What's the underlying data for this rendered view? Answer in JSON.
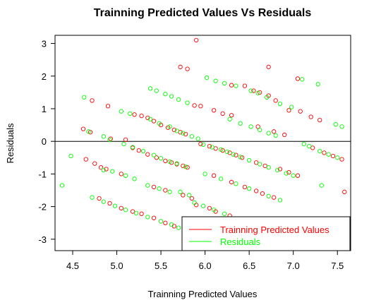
{
  "chart_data": {
    "type": "scatter",
    "title": "Trainning Predicted Values Vs Residuals",
    "xlabel": "Trainning Predicted Values",
    "ylabel": "Residuals",
    "xlim": [
      4.3,
      7.65
    ],
    "ylim": [
      -3.35,
      3.25
    ],
    "xticks": [
      "4.5",
      "5.0",
      "5.5",
      "6.0",
      "6.5",
      "7.0",
      "7.5"
    ],
    "yticks": [
      "-3",
      "-2",
      "-1",
      "0",
      "1",
      "2",
      "3"
    ],
    "hline": 0,
    "legend_position": "bottom-right",
    "series": [
      {
        "name": "Trainning Predicted Values",
        "color": "#ff0000",
        "points": [
          [
            4.62,
            0.38
          ],
          [
            4.7,
            0.28
          ],
          [
            4.72,
            1.25
          ],
          [
            4.9,
            1.08
          ],
          [
            4.93,
            0.08
          ],
          [
            5.1,
            0.05
          ],
          [
            5.2,
            0.82
          ],
          [
            5.28,
            0.78
          ],
          [
            5.35,
            0.72
          ],
          [
            5.42,
            0.62
          ],
          [
            5.5,
            0.5
          ],
          [
            5.58,
            0.42
          ],
          [
            5.65,
            0.35
          ],
          [
            5.72,
            0.28
          ],
          [
            5.78,
            0.22
          ],
          [
            5.88,
            1.1
          ],
          [
            5.95,
            1.08
          ],
          [
            6.1,
            0.95
          ],
          [
            6.2,
            0.85
          ],
          [
            6.3,
            0.8
          ],
          [
            6.45,
            1.7
          ],
          [
            6.55,
            1.55
          ],
          [
            6.62,
            1.5
          ],
          [
            6.72,
            1.4
          ],
          [
            6.8,
            1.25
          ],
          [
            6.95,
            0.95
          ],
          [
            7.08,
            0.92
          ],
          [
            7.2,
            0.75
          ],
          [
            7.3,
            0.65
          ],
          [
            5.72,
            2.28
          ],
          [
            5.8,
            2.22
          ],
          [
            5.9,
            3.1
          ],
          [
            6.3,
            1.72
          ],
          [
            6.72,
            2.28
          ],
          [
            7.05,
            1.92
          ],
          [
            6.6,
            0.45
          ],
          [
            6.78,
            0.3
          ],
          [
            6.9,
            0.2
          ],
          [
            4.65,
            -0.55
          ],
          [
            4.75,
            -0.68
          ],
          [
            4.82,
            -0.8
          ],
          [
            4.88,
            -0.85
          ],
          [
            5.05,
            -1.0
          ],
          [
            5.18,
            -0.2
          ],
          [
            5.25,
            -0.28
          ],
          [
            5.35,
            -0.4
          ],
          [
            5.45,
            -0.5
          ],
          [
            5.55,
            -0.6
          ],
          [
            5.62,
            -0.65
          ],
          [
            5.68,
            -0.7
          ],
          [
            5.75,
            -0.75
          ],
          [
            5.8,
            -0.8
          ],
          [
            5.95,
            -0.08
          ],
          [
            6.05,
            -0.15
          ],
          [
            6.12,
            -0.22
          ],
          [
            6.2,
            -0.28
          ],
          [
            6.28,
            -0.35
          ],
          [
            6.35,
            -0.42
          ],
          [
            6.42,
            -0.5
          ],
          [
            6.58,
            -0.65
          ],
          [
            6.68,
            -0.75
          ],
          [
            6.85,
            -0.85
          ],
          [
            6.95,
            -0.95
          ],
          [
            7.05,
            -1.05
          ],
          [
            7.22,
            -0.2
          ],
          [
            7.35,
            -0.35
          ],
          [
            7.45,
            -0.45
          ],
          [
            7.55,
            -0.55
          ],
          [
            7.58,
            -1.55
          ],
          [
            6.1,
            -1.05
          ],
          [
            6.3,
            -1.25
          ],
          [
            6.45,
            -1.4
          ],
          [
            6.58,
            -1.52
          ],
          [
            6.65,
            -1.6
          ],
          [
            6.78,
            -1.72
          ],
          [
            4.8,
            -1.75
          ],
          [
            4.92,
            -1.9
          ],
          [
            5.05,
            -2.05
          ],
          [
            5.18,
            -2.15
          ],
          [
            5.28,
            -2.22
          ],
          [
            5.42,
            -2.35
          ],
          [
            5.55,
            -2.5
          ],
          [
            5.65,
            -2.6
          ],
          [
            5.9,
            -1.95
          ],
          [
            6.05,
            -2.05
          ],
          [
            6.12,
            -2.15
          ],
          [
            6.28,
            -2.28
          ],
          [
            5.75,
            -1.65
          ],
          [
            5.85,
            -1.75
          ],
          [
            5.55,
            -1.5
          ],
          [
            5.42,
            -1.4
          ]
        ]
      },
      {
        "name": "Residuals",
        "color": "#00ff00",
        "points": [
          [
            4.38,
            -1.35
          ],
          [
            4.48,
            -0.45
          ],
          [
            4.63,
            1.35
          ],
          [
            4.68,
            0.3
          ],
          [
            4.85,
            0.15
          ],
          [
            5.05,
            0.92
          ],
          [
            5.15,
            0.85
          ],
          [
            5.38,
            1.62
          ],
          [
            5.45,
            1.55
          ],
          [
            5.55,
            1.45
          ],
          [
            5.62,
            1.38
          ],
          [
            5.7,
            1.28
          ],
          [
            5.8,
            1.18
          ],
          [
            5.38,
            0.68
          ],
          [
            5.48,
            0.55
          ],
          [
            5.6,
            0.45
          ],
          [
            5.68,
            0.32
          ],
          [
            5.75,
            0.25
          ],
          [
            5.85,
            0.15
          ],
          [
            5.92,
            0.08
          ],
          [
            6.02,
            1.95
          ],
          [
            6.12,
            1.85
          ],
          [
            6.22,
            1.78
          ],
          [
            6.35,
            1.7
          ],
          [
            6.52,
            1.55
          ],
          [
            6.6,
            1.48
          ],
          [
            6.7,
            1.35
          ],
          [
            6.85,
            1.15
          ],
          [
            6.98,
            1.05
          ],
          [
            7.1,
            1.9
          ],
          [
            7.28,
            1.75
          ],
          [
            6.28,
            0.68
          ],
          [
            6.4,
            0.55
          ],
          [
            6.52,
            0.45
          ],
          [
            6.62,
            0.35
          ],
          [
            6.72,
            0.25
          ],
          [
            6.8,
            0.18
          ],
          [
            7.12,
            -0.08
          ],
          [
            7.48,
            0.52
          ],
          [
            7.55,
            0.45
          ],
          [
            4.92,
            0.05
          ],
          [
            5.08,
            -0.08
          ],
          [
            5.18,
            -0.18
          ],
          [
            5.3,
            -0.3
          ],
          [
            5.42,
            -0.42
          ],
          [
            5.5,
            -0.52
          ],
          [
            5.6,
            -0.62
          ],
          [
            5.68,
            -0.68
          ],
          [
            5.78,
            -0.78
          ],
          [
            5.98,
            -0.1
          ],
          [
            6.08,
            -0.18
          ],
          [
            6.18,
            -0.25
          ],
          [
            6.25,
            -0.32
          ],
          [
            6.32,
            -0.4
          ],
          [
            6.4,
            -0.48
          ],
          [
            6.5,
            -0.58
          ],
          [
            6.62,
            -0.7
          ],
          [
            6.72,
            -0.8
          ],
          [
            6.82,
            -0.88
          ],
          [
            6.92,
            -0.98
          ],
          [
            7.0,
            -1.05
          ],
          [
            7.18,
            -0.15
          ],
          [
            7.3,
            -0.3
          ],
          [
            7.4,
            -0.4
          ],
          [
            7.5,
            -0.5
          ],
          [
            7.32,
            -1.35
          ],
          [
            4.85,
            -0.88
          ],
          [
            4.95,
            -0.92
          ],
          [
            5.1,
            -1.05
          ],
          [
            5.2,
            -1.15
          ],
          [
            5.35,
            -1.35
          ],
          [
            5.48,
            -1.45
          ],
          [
            5.6,
            -1.55
          ],
          [
            6.0,
            -1.0
          ],
          [
            6.18,
            -1.15
          ],
          [
            6.35,
            -1.3
          ],
          [
            6.5,
            -1.45
          ],
          [
            6.72,
            -1.68
          ],
          [
            6.85,
            -1.8
          ],
          [
            4.72,
            -1.72
          ],
          [
            4.85,
            -1.85
          ],
          [
            4.98,
            -1.98
          ],
          [
            5.1,
            -2.1
          ],
          [
            5.22,
            -2.2
          ],
          [
            5.35,
            -2.32
          ],
          [
            5.5,
            -2.45
          ],
          [
            5.62,
            -2.55
          ],
          [
            5.7,
            -2.65
          ],
          [
            5.88,
            -1.88
          ],
          [
            5.98,
            -1.98
          ],
          [
            6.1,
            -2.1
          ],
          [
            6.22,
            -2.22
          ],
          [
            5.72,
            -1.55
          ],
          [
            5.82,
            -1.65
          ]
        ]
      }
    ]
  }
}
